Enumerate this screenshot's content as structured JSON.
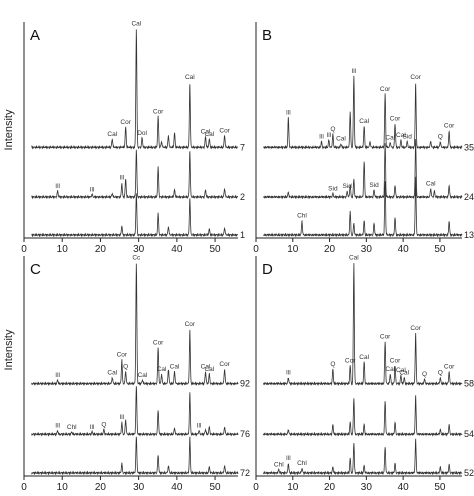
{
  "figure": {
    "ylabel": "Intensity"
  },
  "chart_data": [
    {
      "type": "line",
      "panel": "A",
      "xlim": [
        0,
        56
      ],
      "ticks": [
        0,
        10,
        20,
        30,
        40,
        50
      ],
      "series": [
        {
          "name": "7",
          "peaks": [
            [
              23.1,
              0.07,
              "Cal"
            ],
            [
              26.6,
              0.17,
              "Cor"
            ],
            [
              29.4,
              1.0,
              "Cal"
            ],
            [
              30.9,
              0.08,
              "Dol"
            ],
            [
              35.1,
              0.26,
              "Cor"
            ],
            [
              36.0,
              0.05,
              ""
            ],
            [
              37.8,
              0.1,
              ""
            ],
            [
              39.4,
              0.12,
              ""
            ],
            [
              43.4,
              0.55,
              "Cal"
            ],
            [
              47.5,
              0.09,
              "Cal"
            ],
            [
              48.5,
              0.07,
              "Cal"
            ],
            [
              52.5,
              0.1,
              "Cor"
            ],
            [
              57.4,
              0.05,
              ""
            ]
          ]
        },
        {
          "name": "2",
          "peaks": [
            [
              8.8,
              0.05,
              "Ill"
            ],
            [
              17.8,
              0.02,
              "Ill"
            ],
            [
              23.1,
              0.03,
              ""
            ],
            [
              25.6,
              0.12,
              "Ill"
            ],
            [
              26.6,
              0.15,
              ""
            ],
            [
              29.4,
              0.4,
              ""
            ],
            [
              35.1,
              0.25,
              ""
            ],
            [
              39.4,
              0.06,
              ""
            ],
            [
              43.4,
              0.4,
              ""
            ],
            [
              47.5,
              0.06,
              ""
            ],
            [
              52.5,
              0.07,
              ""
            ]
          ]
        },
        {
          "name": "1",
          "peaks": [
            [
              25.6,
              0.08,
              ""
            ],
            [
              29.4,
              0.35,
              ""
            ],
            [
              35.1,
              0.18,
              ""
            ],
            [
              37.8,
              0.07,
              ""
            ],
            [
              43.4,
              0.32,
              ""
            ],
            [
              48.5,
              0.05,
              ""
            ],
            [
              52.5,
              0.06,
              ""
            ]
          ]
        }
      ]
    },
    {
      "type": "line",
      "panel": "B",
      "xlim": [
        0,
        56
      ],
      "ticks": [
        0,
        10,
        20,
        30,
        40,
        50
      ],
      "series": [
        {
          "name": "35",
          "peaks": [
            [
              8.8,
              0.25,
              "Ill"
            ],
            [
              17.8,
              0.05,
              "Ill"
            ],
            [
              19.8,
              0.06,
              "Ill"
            ],
            [
              20.9,
              0.11,
              "Q"
            ],
            [
              23.1,
              0.03,
              "Cal"
            ],
            [
              25.6,
              0.3,
              ""
            ],
            [
              26.6,
              0.6,
              "Ill"
            ],
            [
              29.4,
              0.18,
              "Cal"
            ],
            [
              31.0,
              0.05,
              ""
            ],
            [
              35.1,
              0.45,
              "Cor"
            ],
            [
              36.5,
              0.04,
              "Cal"
            ],
            [
              37.8,
              0.2,
              "Cor"
            ],
            [
              39.4,
              0.06,
              "Cal"
            ],
            [
              41.1,
              0.05,
              "Sid"
            ],
            [
              43.4,
              0.55,
              "Cor"
            ],
            [
              47.5,
              0.05,
              ""
            ],
            [
              50.1,
              0.05,
              "Q"
            ],
            [
              52.5,
              0.14,
              "Cor"
            ]
          ]
        },
        {
          "name": "24",
          "peaks": [
            [
              8.8,
              0.04,
              ""
            ],
            [
              20.9,
              0.03,
              "Sid"
            ],
            [
              24.8,
              0.05,
              "Sid"
            ],
            [
              25.6,
              0.1,
              ""
            ],
            [
              26.6,
              0.15,
              ""
            ],
            [
              29.4,
              0.3,
              ""
            ],
            [
              32.1,
              0.06,
              "Sid"
            ],
            [
              35.1,
              0.45,
              ""
            ],
            [
              37.8,
              0.1,
              ""
            ],
            [
              43.4,
              0.5,
              ""
            ],
            [
              47.5,
              0.07,
              "Cal"
            ],
            [
              48.5,
              0.05,
              ""
            ],
            [
              52.5,
              0.1,
              ""
            ]
          ]
        },
        {
          "name": "13",
          "peaks": [
            [
              12.5,
              0.12,
              "Chl"
            ],
            [
              25.6,
              0.2,
              ""
            ],
            [
              26.6,
              0.1,
              ""
            ],
            [
              29.4,
              0.12,
              ""
            ],
            [
              32.1,
              0.1,
              ""
            ],
            [
              35.1,
              0.45,
              ""
            ],
            [
              37.8,
              0.15,
              ""
            ],
            [
              43.4,
              0.5,
              ""
            ],
            [
              52.5,
              0.12,
              ""
            ]
          ]
        }
      ]
    },
    {
      "type": "line",
      "panel": "C",
      "xlim": [
        0,
        56
      ],
      "ticks": [
        0,
        10,
        20,
        30,
        40,
        50
      ],
      "series": [
        {
          "name": "92",
          "peaks": [
            [
              8.8,
              0.03,
              "Ill"
            ],
            [
              23.1,
              0.05,
              "Cal"
            ],
            [
              25.6,
              0.2,
              "Cor"
            ],
            [
              26.6,
              0.1,
              "Q"
            ],
            [
              29.4,
              1.0,
              "Cc"
            ],
            [
              31.0,
              0.03,
              "Cal"
            ],
            [
              35.1,
              0.3,
              "Cor"
            ],
            [
              36.0,
              0.08,
              "Cal"
            ],
            [
              37.8,
              0.12,
              ""
            ],
            [
              39.4,
              0.1,
              "Cal"
            ],
            [
              43.4,
              0.45,
              "Cor"
            ],
            [
              47.5,
              0.1,
              "Cal"
            ],
            [
              48.5,
              0.08,
              "Cal"
            ],
            [
              52.5,
              0.12,
              "Cor"
            ]
          ]
        },
        {
          "name": "76",
          "peaks": [
            [
              8.8,
              0.03,
              "Ill"
            ],
            [
              12.5,
              0.02,
              "Chl"
            ],
            [
              17.8,
              0.02,
              "Ill"
            ],
            [
              20.9,
              0.04,
              "Q"
            ],
            [
              25.6,
              0.1,
              "Ill"
            ],
            [
              26.6,
              0.12,
              ""
            ],
            [
              29.4,
              0.4,
              ""
            ],
            [
              35.1,
              0.2,
              ""
            ],
            [
              39.4,
              0.05,
              ""
            ],
            [
              43.4,
              0.35,
              ""
            ],
            [
              45.8,
              0.03,
              "Ill"
            ],
            [
              47.5,
              0.04,
              ""
            ],
            [
              48.5,
              0.06,
              ""
            ],
            [
              52.5,
              0.06,
              ""
            ]
          ]
        },
        {
          "name": "72",
          "peaks": [
            [
              25.6,
              0.08,
              ""
            ],
            [
              29.4,
              0.3,
              ""
            ],
            [
              35.1,
              0.15,
              ""
            ],
            [
              37.8,
              0.06,
              ""
            ],
            [
              43.4,
              0.3,
              ""
            ],
            [
              48.5,
              0.05,
              ""
            ],
            [
              52.5,
              0.06,
              ""
            ]
          ]
        }
      ]
    },
    {
      "type": "line",
      "panel": "D",
      "xlim": [
        0,
        56
      ],
      "ticks": [
        0,
        10,
        20,
        30,
        40,
        50
      ],
      "series": [
        {
          "name": "58",
          "peaks": [
            [
              8.8,
              0.05,
              "Ill"
            ],
            [
              20.9,
              0.12,
              "Q"
            ],
            [
              25.6,
              0.15,
              "Cor"
            ],
            [
              26.6,
              1.0,
              "Cal"
            ],
            [
              29.4,
              0.18,
              "Cal"
            ],
            [
              35.1,
              0.35,
              "Cor"
            ],
            [
              36.5,
              0.08,
              "Cal"
            ],
            [
              37.8,
              0.15,
              "Cor"
            ],
            [
              39.4,
              0.07,
              "Cal"
            ],
            [
              40.3,
              0.05,
              "Cal"
            ],
            [
              43.4,
              0.42,
              "Cor"
            ],
            [
              45.8,
              0.04,
              "Q"
            ],
            [
              50.1,
              0.05,
              "Q"
            ],
            [
              52.5,
              0.1,
              "Cor"
            ]
          ]
        },
        {
          "name": "54",
          "peaks": [
            [
              8.8,
              0.04,
              ""
            ],
            [
              20.9,
              0.08,
              ""
            ],
            [
              25.6,
              0.1,
              ""
            ],
            [
              26.6,
              0.3,
              ""
            ],
            [
              29.4,
              0.08,
              ""
            ],
            [
              35.1,
              0.28,
              ""
            ],
            [
              37.8,
              0.1,
              ""
            ],
            [
              43.4,
              0.32,
              ""
            ],
            [
              50.1,
              0.04,
              ""
            ],
            [
              52.5,
              0.08,
              ""
            ]
          ]
        },
        {
          "name": "52",
          "peaks": [
            [
              6.2,
              0.03,
              "Chl"
            ],
            [
              8.8,
              0.08,
              "Ill"
            ],
            [
              12.5,
              0.04,
              "Chl"
            ],
            [
              20.9,
              0.05,
              ""
            ],
            [
              25.6,
              0.12,
              ""
            ],
            [
              26.6,
              0.25,
              ""
            ],
            [
              29.4,
              0.06,
              ""
            ],
            [
              35.1,
              0.22,
              ""
            ],
            [
              37.8,
              0.08,
              ""
            ],
            [
              43.4,
              0.28,
              ""
            ],
            [
              50.1,
              0.05,
              ""
            ],
            [
              52.5,
              0.07,
              ""
            ]
          ]
        }
      ]
    }
  ]
}
